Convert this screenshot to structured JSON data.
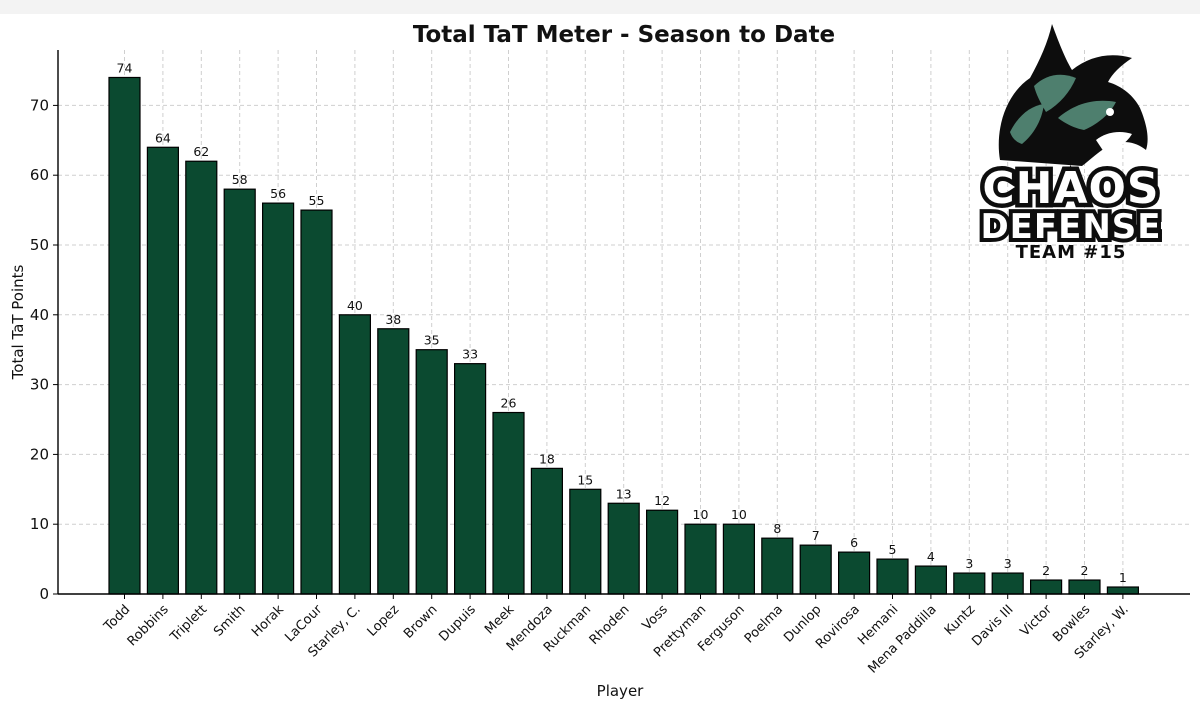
{
  "chart_data": {
    "type": "bar",
    "title": "Total TaT Meter - Season to Date",
    "xlabel": "Player",
    "ylabel": "Total TaT Points",
    "ylim": [
      0,
      76
    ],
    "yticks": [
      0,
      10,
      20,
      30,
      40,
      50,
      60,
      70
    ],
    "grid": true,
    "categories": [
      "Todd",
      "Robbins",
      "Triplett",
      "Smith",
      "Horak",
      "LaCour",
      "Starley, C.",
      "Lopez",
      "Brown",
      "Dupuis",
      "Meek",
      "Mendoza",
      "Ruckman",
      "Rhoden",
      "Voss",
      "Prettyman",
      "Ferguson",
      "Poelma",
      "Dunlop",
      "Rovirosa",
      "Hemani",
      "Mena Paddilla",
      "Kuntz",
      "Davis III",
      "Victor",
      "Bowles",
      "Starley, W."
    ],
    "values": [
      74,
      64,
      62,
      58,
      56,
      55,
      40,
      38,
      35,
      33,
      26,
      18,
      15,
      13,
      12,
      10,
      10,
      8,
      7,
      6,
      5,
      4,
      3,
      3,
      2,
      2,
      1
    ],
    "bar_color": "#0b4a30"
  },
  "logo": {
    "line1": "CHAOS",
    "line2": "DEFENSE",
    "line3": "TEAM #15",
    "icon": "dragon-head-icon",
    "colors": {
      "dark": "#0d0d0d",
      "accent": "#4e7f6e",
      "light": "#ffffff"
    }
  }
}
